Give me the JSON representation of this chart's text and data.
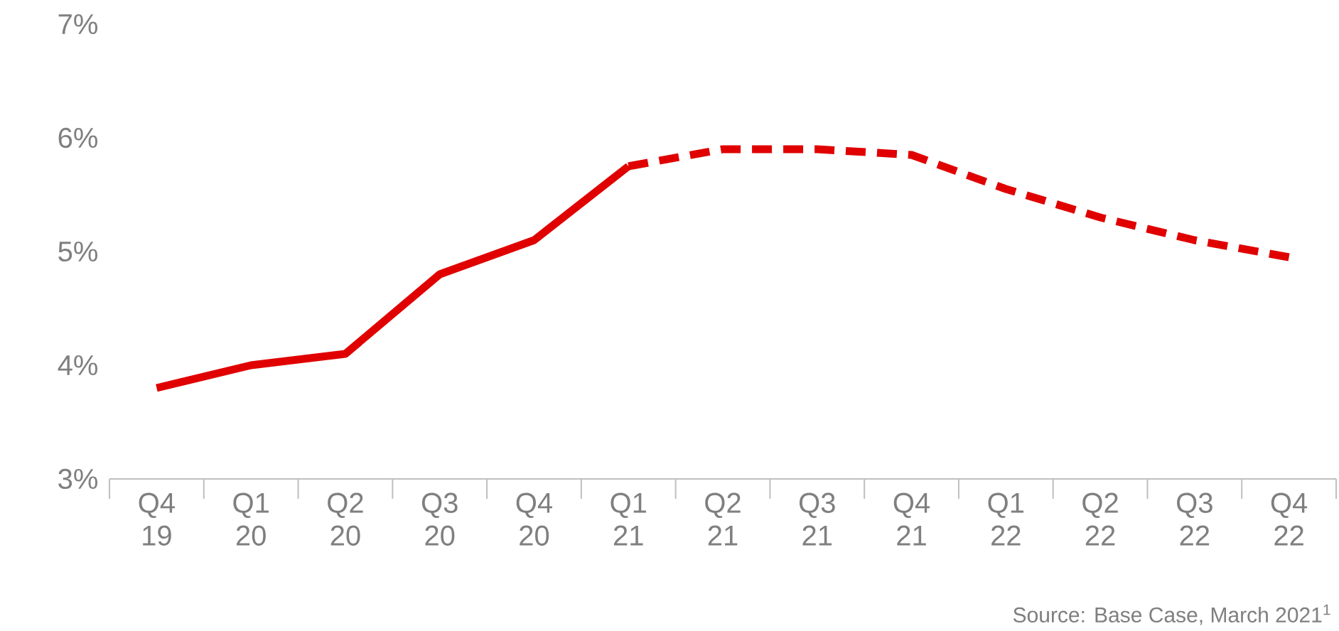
{
  "chart_data": {
    "type": "line",
    "categories": [
      "Q4 19",
      "Q1 20",
      "Q2 20",
      "Q3 20",
      "Q4 20",
      "Q1 21",
      "Q2 21",
      "Q3 21",
      "Q4 21",
      "Q1 22",
      "Q2 22",
      "Q3 22",
      "Q4 22"
    ],
    "series": [
      {
        "color": "#e00000",
        "line_style": "solid",
        "values": [
          3.8,
          4.0,
          4.1,
          4.8,
          5.1,
          5.75,
          null,
          null,
          null,
          null,
          null,
          null,
          null
        ]
      },
      {
        "color": "#e00000",
        "line_style": "dashed",
        "values": [
          null,
          null,
          null,
          null,
          null,
          5.75,
          5.9,
          5.9,
          5.85,
          5.55,
          5.3,
          5.1,
          4.95
        ]
      }
    ],
    "ylim": [
      3,
      7
    ],
    "yticks": [
      {
        "value": 3,
        "label": "3%"
      },
      {
        "value": 4,
        "label": "4%"
      },
      {
        "value": 5,
        "label": "5%"
      },
      {
        "value": 6,
        "label": "6%"
      },
      {
        "value": 7,
        "label": "7%"
      }
    ],
    "marker": "none",
    "annotations": [
      "Source: Base Case, March 2021$^{1}$"
    ]
  }
}
